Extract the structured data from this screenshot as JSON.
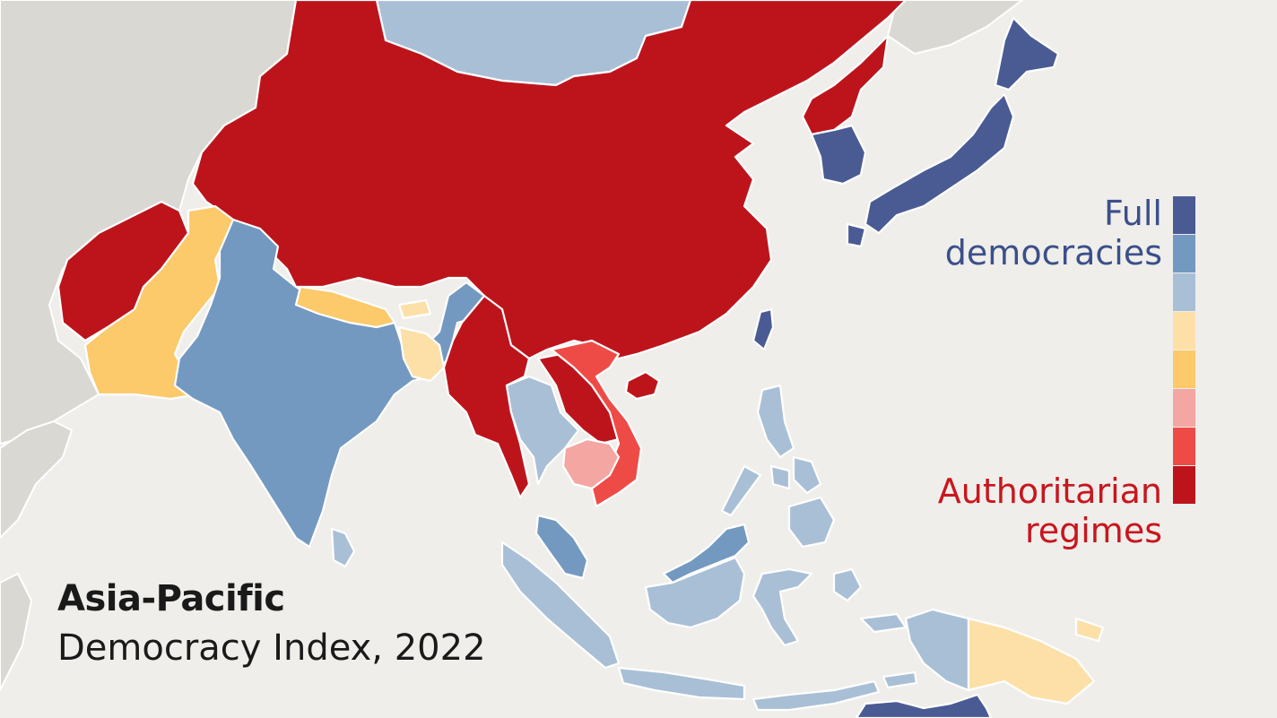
{
  "map": {
    "title": "Asia-Pacific",
    "subtitle": "Democracy Index, 2022",
    "colors": {
      "full_democracy": "#4a5b94",
      "flawed_democracy_high": "#7399c1",
      "flawed_democracy_low": "#a9bfd6",
      "hybrid_regime_high": "#fde0a7",
      "hybrid_regime_low": "#fcc96b",
      "authoritarian_high": "#f4a6a3",
      "authoritarian_mid": "#ef4b46",
      "authoritarian_low": "#bd141c",
      "background_land": "#d9d8d3",
      "sea": "#efeeea"
    }
  },
  "legend": {
    "top_label_line1": "Full",
    "top_label_line2": "democracies",
    "bottom_label_line1": "Authoritarian",
    "bottom_label_line2": "regimes",
    "swatches": [
      "#4a5b94",
      "#7399c1",
      "#a9bfd6",
      "#fde0a7",
      "#fcc96b",
      "#f4a6a3",
      "#ef4b46",
      "#bd141c"
    ]
  }
}
